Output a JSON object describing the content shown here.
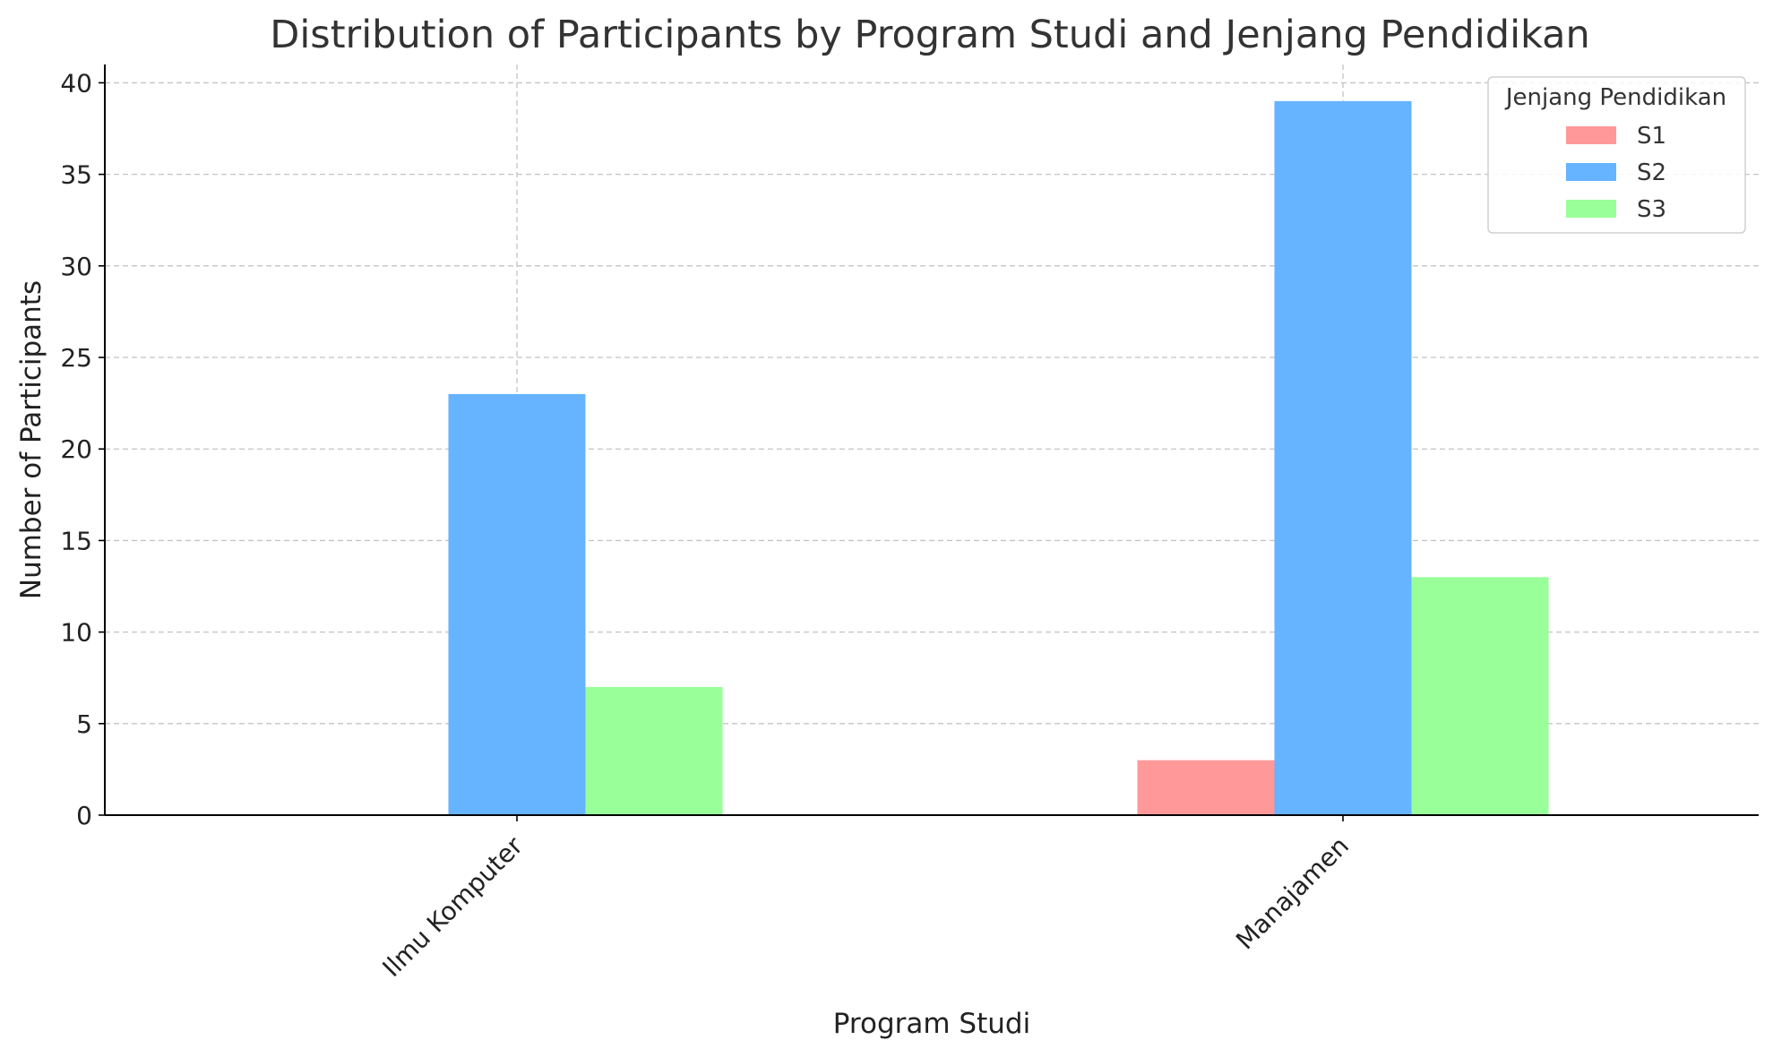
{
  "chart_data": {
    "type": "bar",
    "title": "Distribution of Participants by Program Studi and Jenjang Pendidikan",
    "xlabel": "Program Studi",
    "ylabel": "Number of Participants",
    "categories": [
      "Ilmu Komputer",
      "Manajamen"
    ],
    "series": [
      {
        "name": "S1",
        "values": [
          0,
          3
        ],
        "color": "#ff9999"
      },
      {
        "name": "S2",
        "values": [
          23,
          39
        ],
        "color": "#66b3ff"
      },
      {
        "name": "S3",
        "values": [
          7,
          13
        ],
        "color": "#99ff99"
      }
    ],
    "ylim": [
      0,
      41
    ],
    "yticks": [
      0,
      5,
      10,
      15,
      20,
      25,
      30,
      35,
      40
    ],
    "grid": true,
    "legend": {
      "title": "Jenjang Pendidikan",
      "placement": "top-right"
    }
  }
}
